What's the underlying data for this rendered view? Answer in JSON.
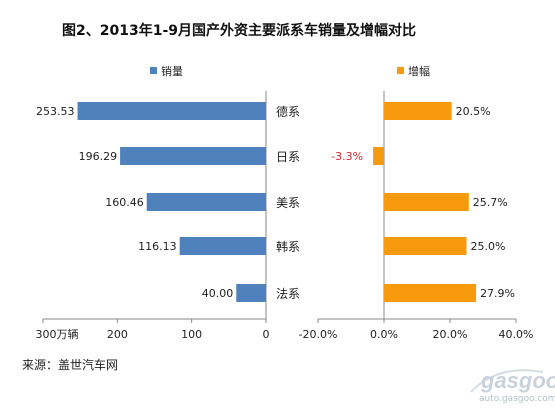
{
  "chart_data": [
    {
      "type": "bar",
      "orientation": "horizontal",
      "title": "图2、2013年1-9月国产外资主要派系车销量及增幅对比",
      "categories": [
        "德系",
        "日系",
        "美系",
        "韩系",
        "法系"
      ],
      "series": [
        {
          "name": "销量",
          "values": [
            253.53,
            196.29,
            160.46,
            116.13,
            40.0
          ],
          "labels": [
            "253.53",
            "196.29",
            "160.46",
            "116.13",
            "40.00"
          ]
        }
      ],
      "xlim": [
        0,
        300
      ],
      "x_reversed": true,
      "tick_labels": [
        "300万辆",
        "200",
        "100",
        "0"
      ],
      "legend_position": "top",
      "bar_color": "#4F81BD"
    },
    {
      "type": "bar",
      "orientation": "horizontal",
      "categories": [
        "德系",
        "日系",
        "美系",
        "韩系",
        "法系"
      ],
      "series": [
        {
          "name": "增幅",
          "values": [
            20.5,
            -3.3,
            25.7,
            25.0,
            27.9
          ],
          "labels": [
            "20.5%",
            "-3.3%",
            "25.7%",
            "25.0%",
            "27.9%"
          ]
        }
      ],
      "xlim": [
        -20,
        40
      ],
      "tick_labels": [
        "-20.0%",
        "0.0%",
        "20.0%",
        "40.0%"
      ],
      "legend_position": "top",
      "bar_color": "#F79A0E",
      "negative_label_color": "#d9272e"
    }
  ],
  "source": "来源：盖世汽车网",
  "watermark": {
    "logo": "gasgoo",
    "url": "auto.gasgoo.com"
  }
}
